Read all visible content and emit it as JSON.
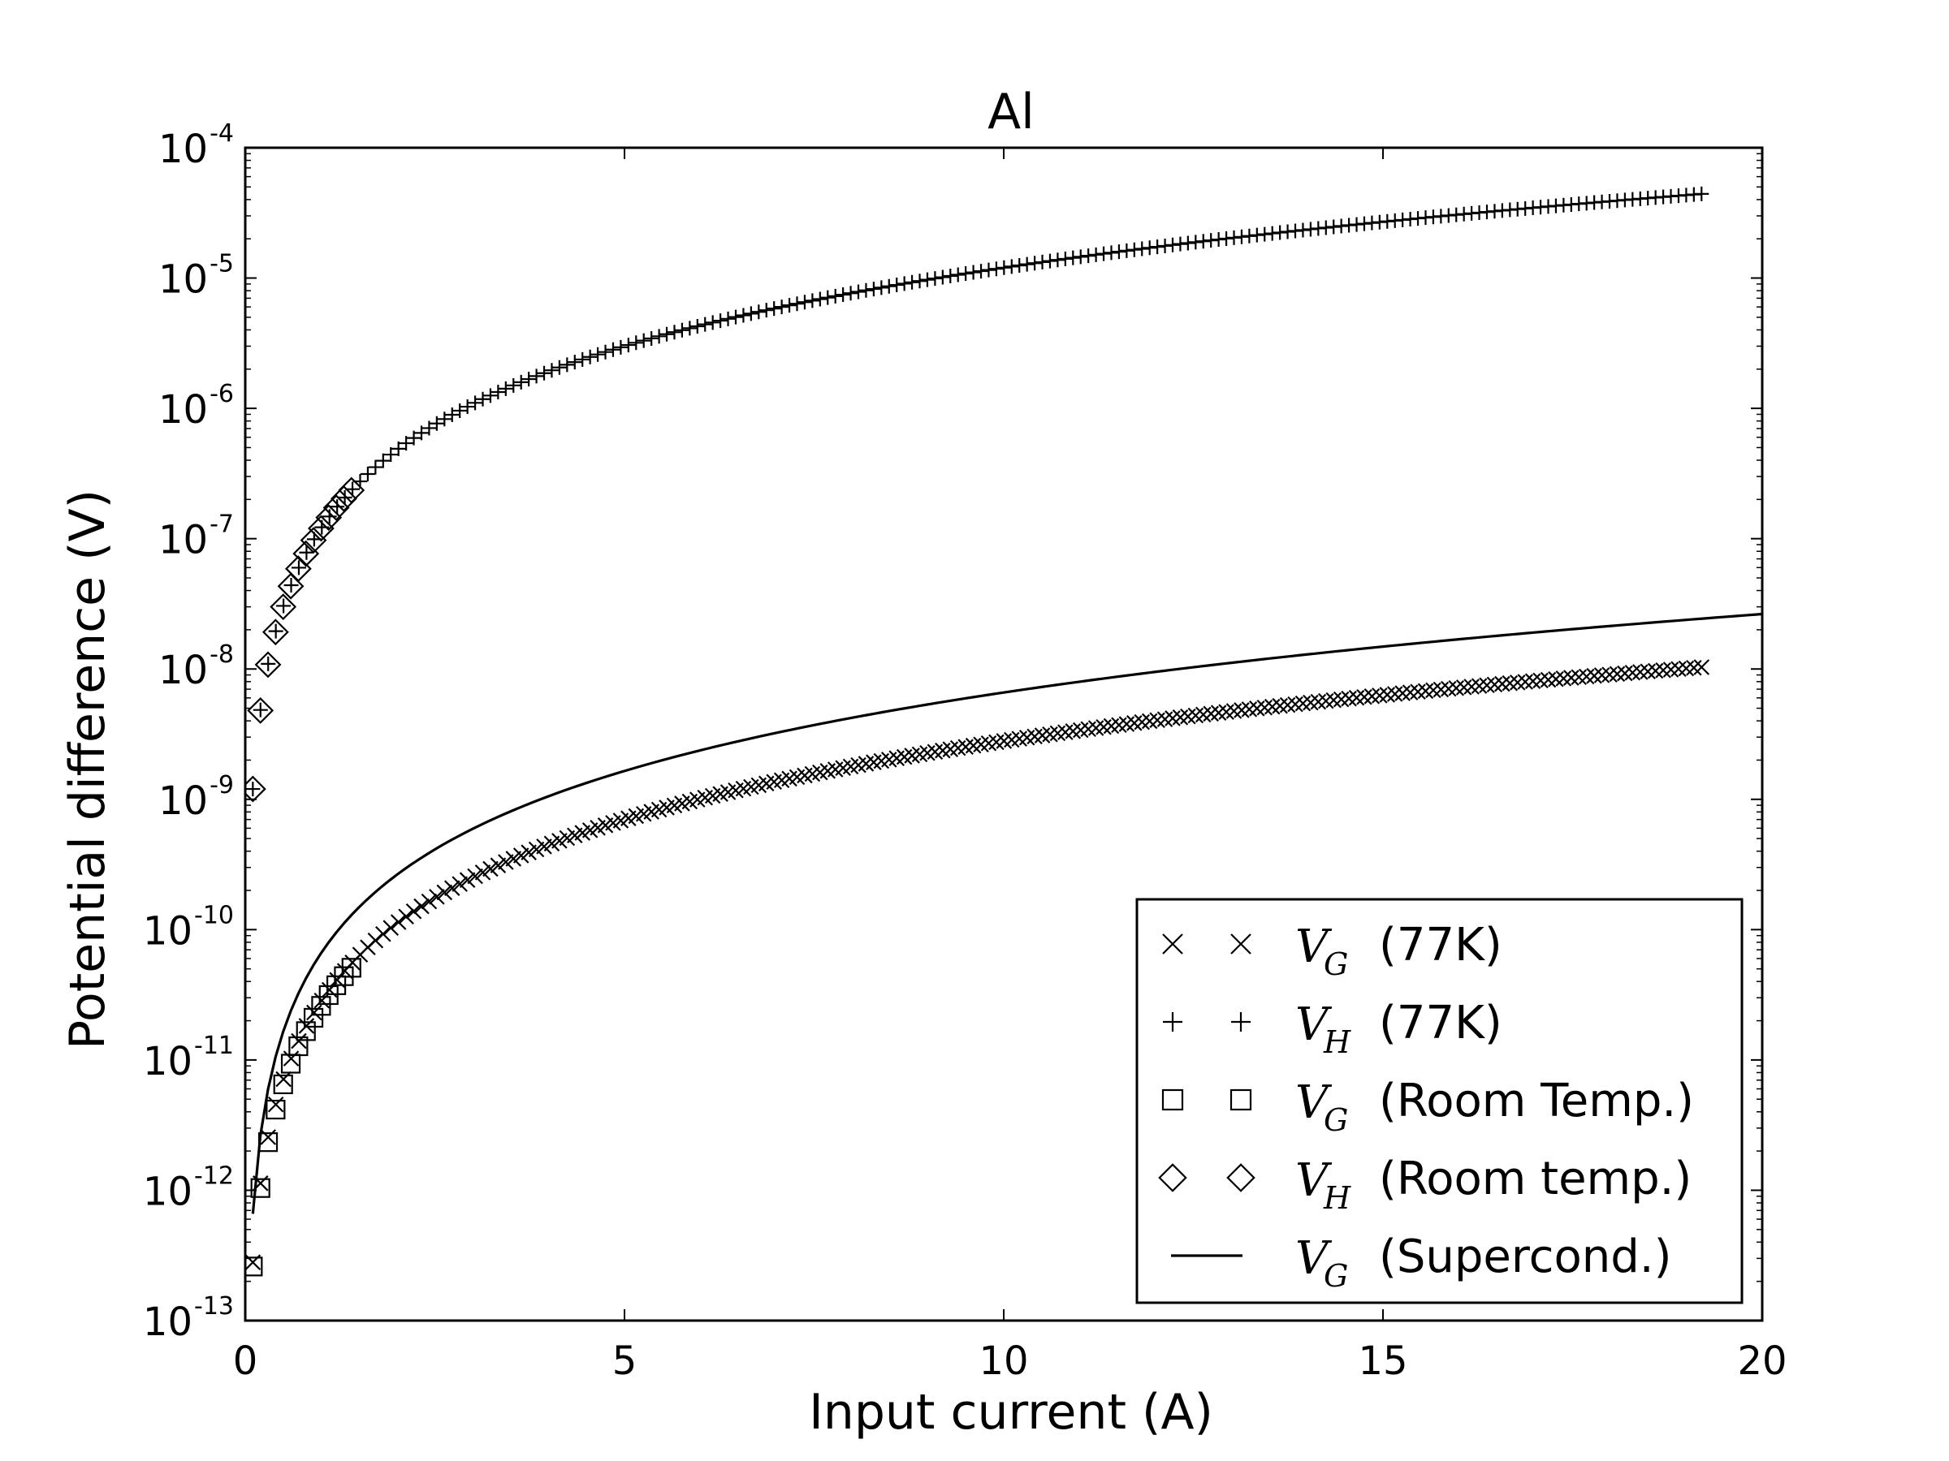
{
  "chart_data": {
    "type": "scatter",
    "title": "Al",
    "xlabel": "Input current (A)",
    "ylabel": "Potential difference (V)",
    "xlim": [
      0,
      20
    ],
    "ylim": [
      1e-13,
      0.0001
    ],
    "yscale": "log",
    "grid": false,
    "legend_position": "bottom-right",
    "x_ticks": [
      0,
      5,
      10,
      15,
      20
    ],
    "x_tick_labels": [
      "0",
      "5",
      "10",
      "15",
      "20"
    ],
    "y_ticks": [
      1e-13,
      1e-12,
      1e-11,
      1e-10,
      1e-09,
      1e-08,
      1e-07,
      1e-06,
      1e-05,
      0.0001
    ],
    "y_tick_labels": [
      {
        "base": "10",
        "exp": "-13"
      },
      {
        "base": "10",
        "exp": "-12"
      },
      {
        "base": "10",
        "exp": "-11"
      },
      {
        "base": "10",
        "exp": "-10"
      },
      {
        "base": "10",
        "exp": "-9"
      },
      {
        "base": "10",
        "exp": "-8"
      },
      {
        "base": "10",
        "exp": "-7"
      },
      {
        "base": "10",
        "exp": "-6"
      },
      {
        "base": "10",
        "exp": "-5"
      },
      {
        "base": "10",
        "exp": "-4"
      }
    ],
    "series": [
      {
        "name": "V_G (77K)",
        "legend": {
          "var": "V",
          "sub": "G",
          "text": "(77K)"
        },
        "marker": "x",
        "model": {
          "form": "power",
          "coef": 2.8e-11,
          "exponent": 2.0
        },
        "x_range": [
          0.1,
          19.2
        ],
        "points": 190
      },
      {
        "name": "V_H (77K)",
        "legend": {
          "var": "V",
          "sub": "H",
          "text": "(77K)"
        },
        "marker": "+",
        "model": {
          "form": "power",
          "coef": 1.2e-07,
          "exponent": 2.0
        },
        "x_range": [
          0.1,
          19.2
        ],
        "points": 190
      },
      {
        "name": "V_G (Room Temp.)",
        "legend": {
          "var": "V",
          "sub": "G",
          "text": "(Room Temp.)"
        },
        "marker": "square",
        "model": {
          "form": "power",
          "coef": 2.6e-11,
          "exponent": 2.0
        },
        "x_range": [
          0.1,
          1.4
        ],
        "points": 14
      },
      {
        "name": "V_H (Room temp.)",
        "legend": {
          "var": "V",
          "sub": "H",
          "text": "(Room temp.)"
        },
        "marker": "diamond",
        "model": {
          "form": "power",
          "coef": 1.2e-07,
          "exponent": 2.0
        },
        "x_range": [
          0.1,
          1.4
        ],
        "points": 14
      },
      {
        "name": "V_G (Supercond.)",
        "legend": {
          "var": "V",
          "sub": "G",
          "text": "(Supercond.)"
        },
        "marker": "line",
        "model": {
          "form": "power",
          "coef": 6.6e-11,
          "exponent": 2.0
        },
        "x_range": [
          0.1,
          20.0
        ],
        "points": 200
      }
    ]
  }
}
